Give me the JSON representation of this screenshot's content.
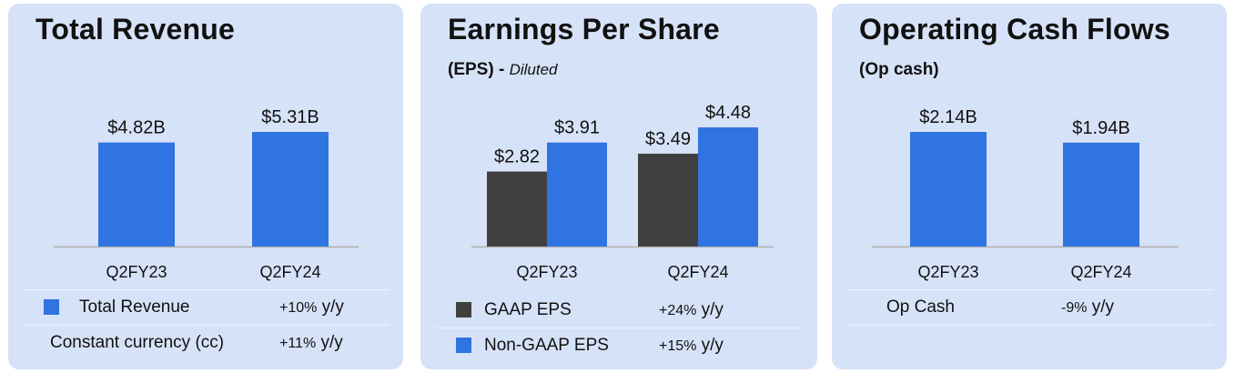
{
  "colors": {
    "card_bg": "#d6e2f7",
    "blue": "#2f74e0",
    "gray": "#404040",
    "axis": "#b9b9b9"
  },
  "panels": {
    "revenue": {
      "title": "Total Revenue",
      "legend": [
        {
          "label": "Total Revenue",
          "value": "+10%",
          "suffix": " y/y",
          "swatch": "#2f74e0"
        },
        {
          "label": "Constant currency (cc)",
          "value": "+11%",
          "suffix": " y/y"
        }
      ]
    },
    "eps": {
      "title": "Earnings Per Share",
      "subtitle": "(EPS)",
      "subtitle_dash": " - ",
      "subtitle_note": "Diluted",
      "legend": [
        {
          "label": "GAAP EPS",
          "value": "+24%",
          "suffix": " y/y",
          "swatch": "#404040"
        },
        {
          "label": "Non-GAAP EPS",
          "value": "+15%",
          "suffix": " y/y",
          "swatch": "#2f74e0"
        }
      ]
    },
    "opcash": {
      "title": "Operating Cash Flows",
      "subtitle": "(Op cash)",
      "legend": [
        {
          "label": "Op Cash",
          "value": "-9%",
          "suffix": " y/y"
        }
      ]
    }
  },
  "chart_data": [
    {
      "type": "bar",
      "title": "Total Revenue",
      "categories": [
        "Q2FY23",
        "Q2FY24"
      ],
      "series": [
        {
          "name": "Total Revenue",
          "values": [
            4.82,
            5.31
          ],
          "labels": [
            "$4.82B",
            "$5.31B"
          ],
          "color": "#2f74e0"
        }
      ],
      "ylim": [
        0,
        5.31
      ]
    },
    {
      "type": "bar",
      "title": "Earnings Per Share",
      "categories": [
        "Q2FY23",
        "Q2FY24"
      ],
      "series": [
        {
          "name": "GAAP EPS",
          "values": [
            2.82,
            3.49
          ],
          "labels": [
            "$2.82",
            "$3.49"
          ],
          "color": "#404040"
        },
        {
          "name": "Non-GAAP EPS",
          "values": [
            3.91,
            4.48
          ],
          "labels": [
            "$3.91",
            "$4.48"
          ],
          "color": "#2f74e0"
        }
      ],
      "ylim": [
        0,
        4.48
      ]
    },
    {
      "type": "bar",
      "title": "Operating Cash Flows",
      "categories": [
        "Q2FY23",
        "Q2FY24"
      ],
      "series": [
        {
          "name": "Op Cash",
          "values": [
            2.14,
            1.94
          ],
          "labels": [
            "$2.14B",
            "$1.94B"
          ],
          "color": "#2f74e0"
        }
      ],
      "ylim": [
        0,
        2.14
      ]
    }
  ]
}
